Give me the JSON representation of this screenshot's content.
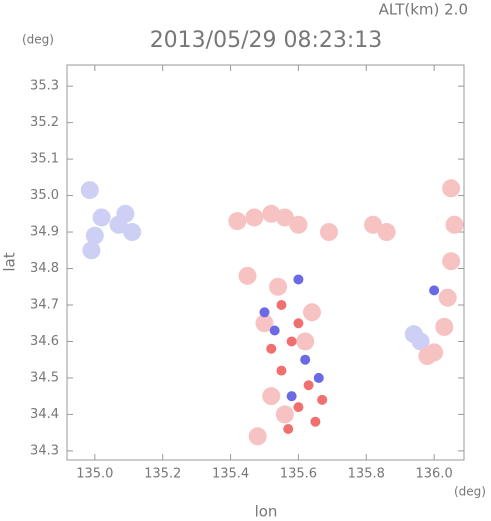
{
  "chart_data": {
    "type": "scatter",
    "altitude_label": "ALT(km) 2.0",
    "title": "2013/05/29 08:23:13",
    "y_unit": "(deg)",
    "x_unit": "(deg)",
    "x_label": "lon",
    "y_label": "lat",
    "xlim": [
      134.918,
      136.088
    ],
    "ylim": [
      34.275,
      35.358
    ],
    "xticks": [
      {
        "value": 135,
        "label": "135.0"
      },
      135.2,
      135.4,
      135.6,
      135.8,
      {
        "value": 136,
        "label": "136.0"
      }
    ],
    "yticks": [
      34.3,
      34.4,
      34.5,
      34.6,
      34.7,
      34.8,
      34.9,
      {
        "value": 35,
        "label": "35.0"
      },
      35.1,
      35.2,
      35.3
    ],
    "series": [
      {
        "color": "#cdd0f4",
        "marker_size": 9,
        "x": [
          134.99,
          135.0,
          135.02,
          135.07,
          135.09,
          135.11,
          134.985,
          135.96,
          135.94
        ],
        "y": [
          34.85,
          34.89,
          34.94,
          34.92,
          34.95,
          34.9,
          35.015,
          34.6,
          34.62
        ]
      },
      {
        "color": "#f6c2c2",
        "marker_size": 9,
        "x": [
          135.42,
          135.47,
          135.52,
          135.56,
          135.6,
          136.05,
          136.06,
          136.05,
          136.04,
          136.03,
          136.0,
          135.98,
          135.82,
          135.86,
          135.69,
          135.54,
          135.5,
          135.62,
          135.56,
          135.52,
          135.64,
          135.48,
          135.45
        ],
        "y": [
          34.93,
          34.94,
          34.95,
          34.94,
          34.92,
          35.02,
          34.92,
          34.82,
          34.72,
          34.64,
          34.57,
          34.56,
          34.92,
          34.9,
          34.9,
          34.75,
          34.65,
          34.6,
          34.4,
          34.45,
          34.68,
          34.34,
          34.78
        ]
      },
      {
        "color": "#f07070",
        "marker_size": 5,
        "x": [
          135.55,
          135.6,
          135.58,
          135.63,
          135.67,
          135.6,
          135.55,
          135.52,
          135.65,
          135.57
        ],
        "y": [
          34.7,
          34.65,
          34.6,
          34.48,
          34.44,
          34.42,
          34.52,
          34.58,
          34.38,
          34.36
        ]
      },
      {
        "color": "#6a6ae6",
        "marker_size": 5,
        "x": [
          135.53,
          135.62,
          135.58,
          135.66,
          135.5,
          135.6,
          136.0
        ],
        "y": [
          34.63,
          34.55,
          34.45,
          34.5,
          34.68,
          34.77,
          34.74
        ]
      }
    ]
  }
}
